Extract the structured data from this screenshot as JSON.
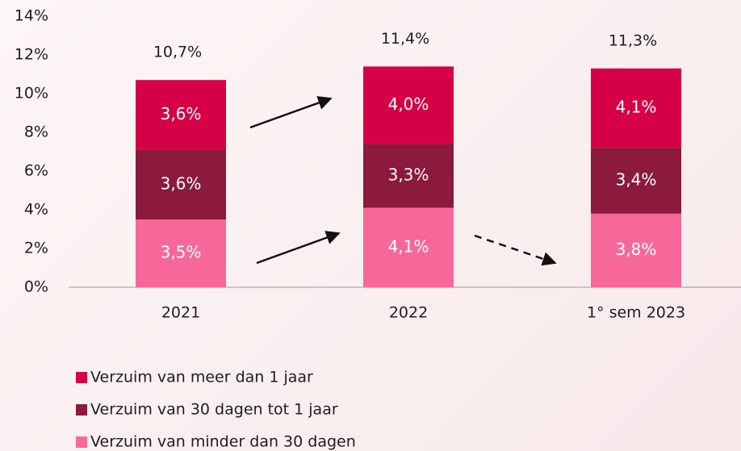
{
  "chart_data": {
    "type": "stacked_bar",
    "categories": [
      "2021",
      "2022",
      "1° sem 2023"
    ],
    "series": [
      {
        "name": "Verzuim van minder dan 30 dagen",
        "color": "#f7689a",
        "values": [
          3.5,
          4.1,
          3.8
        ],
        "value_labels": [
          "3,5%",
          "4,1%",
          "3,8%"
        ]
      },
      {
        "name": "Verzuim van 30 dagen tot 1 jaar",
        "color": "#8b1a3c",
        "values": [
          3.6,
          3.3,
          3.4
        ],
        "value_labels": [
          "3,6%",
          "3,3%",
          "3,4%"
        ]
      },
      {
        "name": "Verzuim van meer dan 1 jaar",
        "color": "#d60046",
        "values": [
          3.6,
          4.0,
          4.1
        ],
        "value_labels": [
          "3,6%",
          "4,0%",
          "4,1%"
        ]
      }
    ],
    "totals": [
      10.7,
      11.4,
      11.3
    ],
    "total_labels": [
      "10,7%",
      "11,4%",
      "11,3%"
    ],
    "ylim": [
      0,
      14
    ],
    "yticks": [
      {
        "value": 0,
        "label": "0%"
      },
      {
        "value": 2,
        "label": "2%"
      },
      {
        "value": 4,
        "label": "4%"
      },
      {
        "value": 6,
        "label": "6%"
      },
      {
        "value": 8,
        "label": "8%"
      },
      {
        "value": 10,
        "label": "10%"
      },
      {
        "value": 12,
        "label": "12%"
      },
      {
        "value": 14,
        "label": "14%"
      }
    ],
    "grid": false,
    "legend": "bottom-left"
  }
}
